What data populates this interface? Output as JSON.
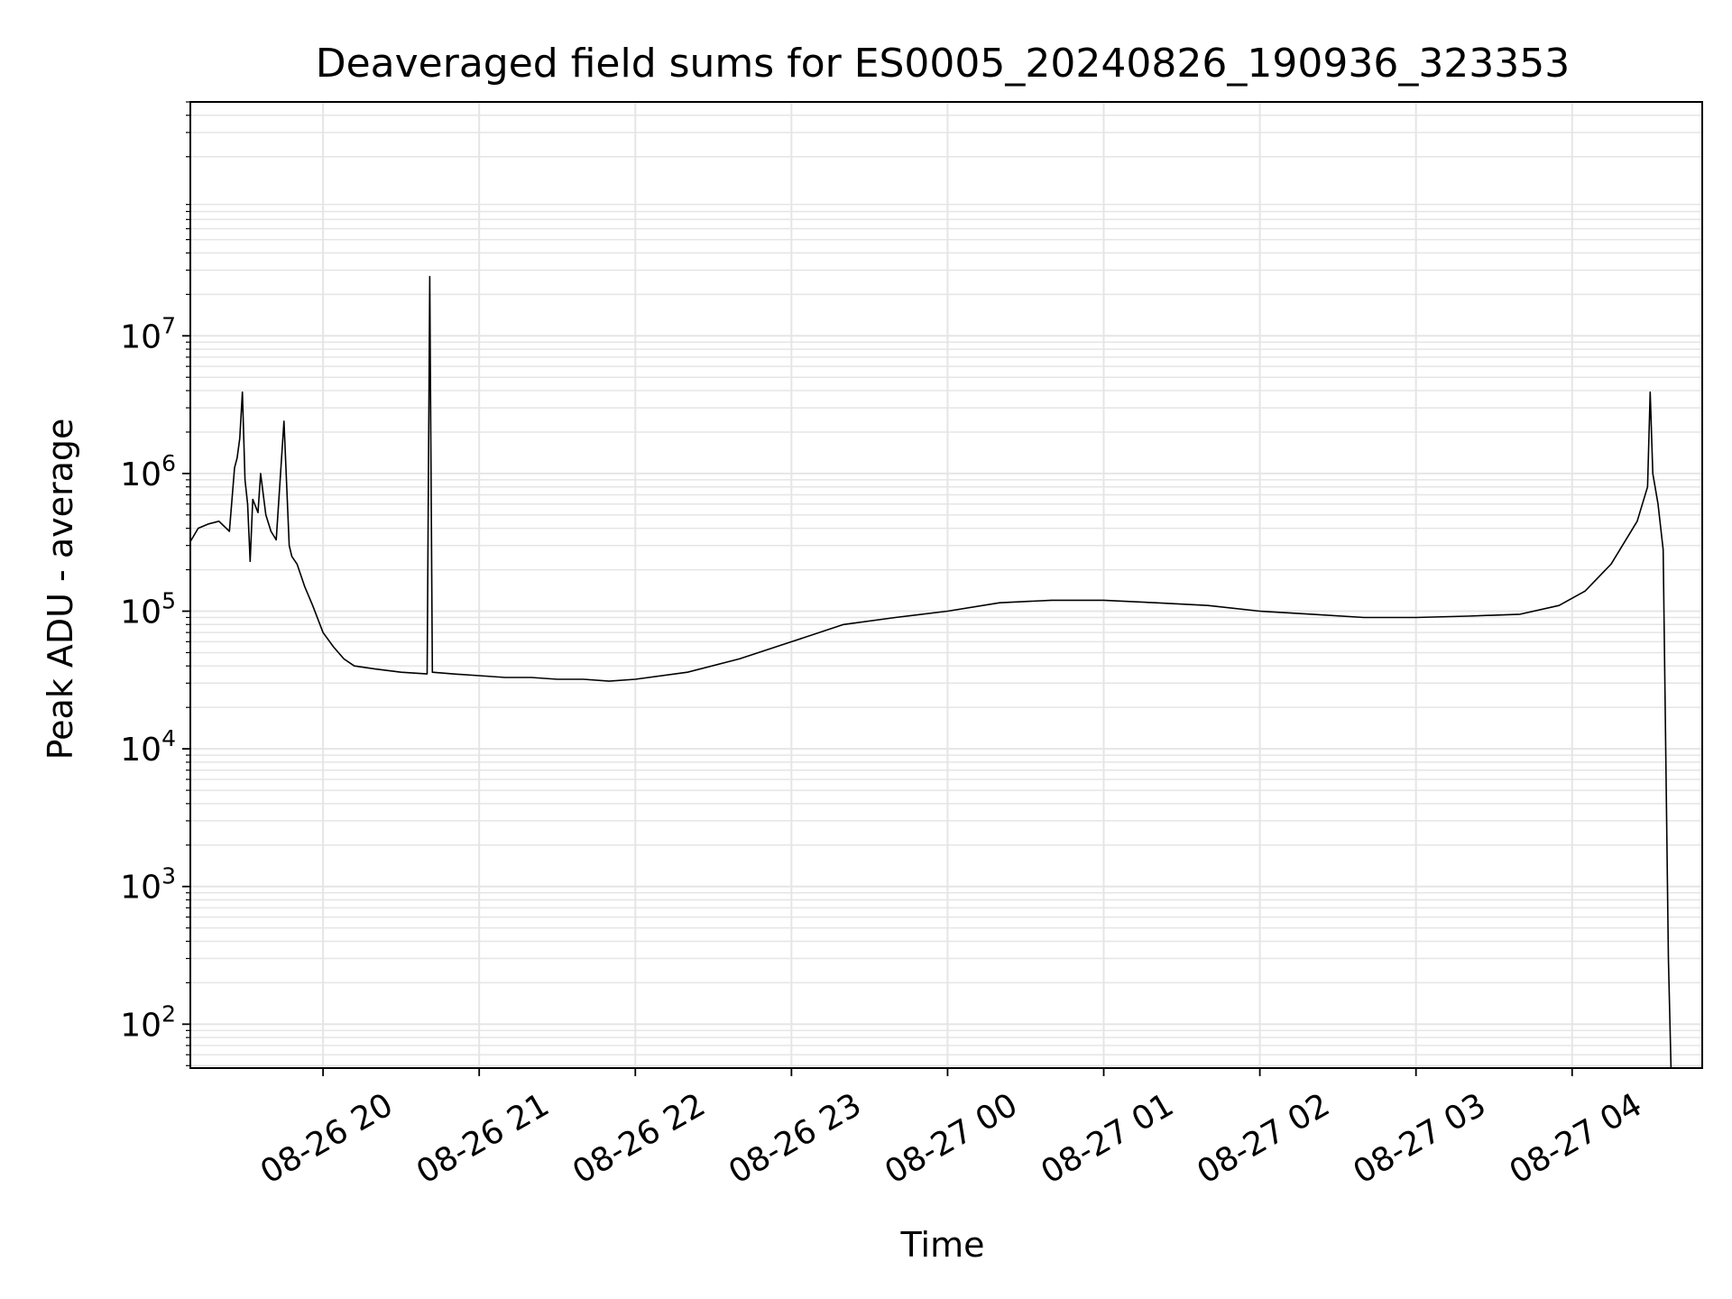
{
  "chart_data": {
    "type": "line",
    "title": "Deaveraged field sums for ES0005_20240826_190936_323353",
    "xlabel": "Time",
    "ylabel": "Peak ADU - average",
    "yscale": "log",
    "grid": true,
    "line_color": "#000000",
    "grid_color": "#e5e5e5",
    "xlim": [
      "2024-08-26 19:09",
      "2024-08-27 04:50"
    ],
    "ylim": [
      48,
      500000000
    ],
    "x_ticks": [
      {
        "value": "2024-08-26 20:00",
        "label": "08-26 20"
      },
      {
        "value": "2024-08-26 21:00",
        "label": "08-26 21"
      },
      {
        "value": "2024-08-26 22:00",
        "label": "08-26 22"
      },
      {
        "value": "2024-08-26 23:00",
        "label": "08-26 23"
      },
      {
        "value": "2024-08-27 00:00",
        "label": "08-27 00"
      },
      {
        "value": "2024-08-27 01:00",
        "label": "08-27 01"
      },
      {
        "value": "2024-08-27 02:00",
        "label": "08-27 02"
      },
      {
        "value": "2024-08-27 03:00",
        "label": "08-27 03"
      },
      {
        "value": "2024-08-27 04:00",
        "label": "08-27 04"
      }
    ],
    "y_ticks": [
      {
        "value": 100,
        "base": "10",
        "exp": "2"
      },
      {
        "value": 1000,
        "base": "10",
        "exp": "3"
      },
      {
        "value": 10000,
        "base": "10",
        "exp": "4"
      },
      {
        "value": 100000,
        "base": "10",
        "exp": "5"
      },
      {
        "value": 1000000,
        "base": "10",
        "exp": "6"
      },
      {
        "value": 10000000,
        "base": "10",
        "exp": "7"
      }
    ],
    "series": [
      {
        "x": [
          "2024-08-26 19:09",
          "2024-08-26 19:12",
          "2024-08-26 19:16",
          "2024-08-26 19:20",
          "2024-08-26 19:24",
          "2024-08-26 19:26",
          "2024-08-26 19:27",
          "2024-08-26 19:28",
          "2024-08-26 19:29",
          "2024-08-26 19:30",
          "2024-08-26 19:31",
          "2024-08-26 19:32",
          "2024-08-26 19:33",
          "2024-08-26 19:35",
          "2024-08-26 19:36",
          "2024-08-26 19:38",
          "2024-08-26 19:40",
          "2024-08-26 19:42",
          "2024-08-26 19:45",
          "2024-08-26 19:47",
          "2024-08-26 19:48",
          "2024-08-26 19:50",
          "2024-08-26 19:53",
          "2024-08-26 19:56",
          "2024-08-26 20:00",
          "2024-08-26 20:04",
          "2024-08-26 20:08",
          "2024-08-26 20:12",
          "2024-08-26 20:20",
          "2024-08-26 20:30",
          "2024-08-26 20:40",
          "2024-08-26 20:41",
          "2024-08-26 20:42",
          "2024-08-26 20:50",
          "2024-08-26 21:00",
          "2024-08-26 21:10",
          "2024-08-26 21:20",
          "2024-08-26 21:30",
          "2024-08-26 21:40",
          "2024-08-26 21:50",
          "2024-08-26 22:00",
          "2024-08-26 22:20",
          "2024-08-26 22:40",
          "2024-08-26 23:00",
          "2024-08-26 23:20",
          "2024-08-26 23:40",
          "2024-08-27 00:00",
          "2024-08-27 00:20",
          "2024-08-27 00:40",
          "2024-08-27 01:00",
          "2024-08-27 01:20",
          "2024-08-27 01:40",
          "2024-08-27 02:00",
          "2024-08-27 02:20",
          "2024-08-27 02:40",
          "2024-08-27 03:00",
          "2024-08-27 03:20",
          "2024-08-27 03:40",
          "2024-08-27 03:55",
          "2024-08-27 04:05",
          "2024-08-27 04:15",
          "2024-08-27 04:25",
          "2024-08-27 04:29",
          "2024-08-27 04:30",
          "2024-08-27 04:31",
          "2024-08-27 04:33",
          "2024-08-27 04:35",
          "2024-08-27 04:37",
          "2024-08-27 04:38"
        ],
        "y": [
          320000,
          400000,
          430000,
          450000,
          380000,
          1100000,
          1300000,
          1800000,
          3900000,
          900000,
          600000,
          230000,
          650000,
          520000,
          1000000,
          500000,
          380000,
          330000,
          2400000,
          300000,
          250000,
          220000,
          150000,
          110000,
          70000,
          55000,
          45000,
          40000,
          38000,
          36000,
          35000,
          27000000,
          36000,
          35000,
          34000,
          33000,
          33000,
          32000,
          32000,
          31000,
          32000,
          36000,
          45000,
          60000,
          80000,
          90000,
          100000,
          115000,
          120000,
          120000,
          115000,
          110000,
          100000,
          95000,
          90000,
          90000,
          92000,
          95000,
          110000,
          140000,
          220000,
          450000,
          800000,
          3900000,
          1000000,
          600000,
          280000,
          300,
          48
        ]
      }
    ]
  }
}
